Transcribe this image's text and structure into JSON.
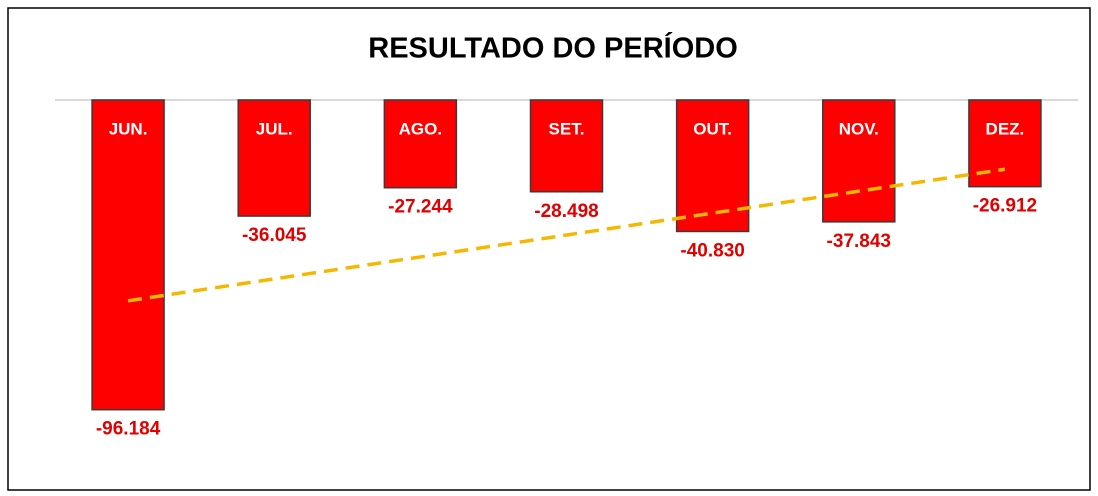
{
  "chart_data": {
    "type": "bar",
    "title": "RESULTADO DO PERÍODO",
    "categories": [
      "JUN.",
      "JUL.",
      "AGO.",
      "SET.",
      "OUT.",
      "NOV.",
      "DEZ."
    ],
    "values": [
      -96184,
      -36045,
      -27244,
      -28498,
      -40830,
      -37843,
      -26912
    ],
    "value_labels": [
      "-96.184",
      "-36.045",
      "-27.244",
      "-28.498",
      "-40.830",
      "-37.843",
      "-26.912"
    ],
    "color": "#ff0000",
    "label_color": "#e00000",
    "trendline": true,
    "trend_color": "#f5b800",
    "ylim": [
      -100000,
      0
    ]
  }
}
